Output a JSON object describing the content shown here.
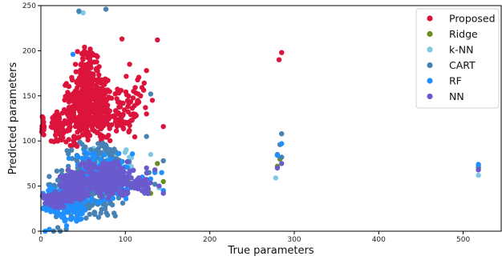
{
  "chart_data": {
    "type": "scatter",
    "xlabel": "True parameters",
    "ylabel": "Predicted parameters",
    "xlim": [
      0,
      545
    ],
    "ylim": [
      0,
      250
    ],
    "xticks": [
      "0",
      "100",
      "200",
      "300",
      "400",
      "500"
    ],
    "yticks": [
      "0",
      "50",
      "100",
      "150",
      "200",
      "250"
    ],
    "grid": false,
    "legend_position": "top-right",
    "series": [
      {
        "name": "Proposed",
        "color": "#dc143c",
        "clusters": [
          {
            "x": [
              0,
              5
            ],
            "y": [
              100,
              130
            ],
            "n": 18
          },
          {
            "x": [
              10,
              30
            ],
            "y": [
              95,
              135
            ],
            "n": 60
          },
          {
            "x": [
              25,
              55
            ],
            "y": [
              90,
              175
            ],
            "n": 140
          },
          {
            "x": [
              40,
              70
            ],
            "y": [
              100,
              210
            ],
            "n": 260
          },
          {
            "x": [
              55,
              85
            ],
            "y": [
              95,
              175
            ],
            "n": 150
          },
          {
            "x": [
              75,
              115
            ],
            "y": [
              95,
              160
            ],
            "n": 60
          },
          {
            "x": [
              90,
              130
            ],
            "y": [
              110,
              185
            ],
            "n": 25
          }
        ],
        "points": [
          [
            138,
            212
          ],
          [
            96,
            213
          ],
          [
            125,
            178
          ],
          [
            132,
            145
          ],
          [
            145,
            116
          ],
          [
            125,
            130
          ],
          [
            282,
            190
          ],
          [
            285,
            198
          ],
          [
            118,
            150
          ],
          [
            105,
            185
          ]
        ]
      },
      {
        "name": "Ridge",
        "color": "#6b8e23",
        "clusters": [
          {
            "x": [
              5,
              25
            ],
            "y": [
              22,
              42
            ],
            "n": 15
          },
          {
            "x": [
              20,
              110
            ],
            "y": [
              35,
              70
            ],
            "n": 60
          }
        ],
        "points": [
          [
            130,
            42
          ],
          [
            138,
            75
          ],
          [
            145,
            55
          ],
          [
            283,
            80
          ],
          [
            518,
            70
          ],
          [
            280,
            72
          ]
        ]
      },
      {
        "name": "k-NN",
        "color": "#7ec8e3",
        "clusters": [
          {
            "x": [
              10,
              60
            ],
            "y": [
              20,
              55
            ],
            "n": 40
          },
          {
            "x": [
              40,
              120
            ],
            "y": [
              45,
              95
            ],
            "n": 60
          }
        ],
        "points": [
          [
            45,
            243
          ],
          [
            50,
            242
          ],
          [
            130,
            85
          ],
          [
            140,
            48
          ],
          [
            278,
            59
          ],
          [
            518,
            62
          ],
          [
            125,
            65
          ]
        ]
      },
      {
        "name": "CART",
        "color": "#4682b4",
        "clusters": [
          {
            "x": [
              0,
              100
            ],
            "y": [
              10,
              75
            ],
            "n": 240
          },
          {
            "x": [
              30,
              110
            ],
            "y": [
              60,
              100
            ],
            "n": 90
          }
        ],
        "points": [
          [
            77,
            246
          ],
          [
            45,
            244
          ],
          [
            130,
            152
          ],
          [
            125,
            105
          ],
          [
            145,
            78
          ],
          [
            285,
            108
          ],
          [
            283,
            96
          ],
          [
            285,
            82
          ],
          [
            518,
            72
          ],
          [
            280,
            85
          ],
          [
            15,
            0
          ],
          [
            20,
            4
          ],
          [
            30,
            2
          ],
          [
            23,
            0
          ],
          [
            123,
            42
          ],
          [
            128,
            65
          ],
          [
            135,
            52
          ]
        ]
      },
      {
        "name": "RF",
        "color": "#1e90ff",
        "clusters": [
          {
            "x": [
              0,
              60
            ],
            "y": [
              5,
              55
            ],
            "n": 120
          },
          {
            "x": [
              30,
              110
            ],
            "y": [
              25,
              95
            ],
            "n": 160
          }
        ],
        "points": [
          [
            38,
            196
          ],
          [
            143,
            65
          ],
          [
            135,
            65
          ],
          [
            130,
            58
          ],
          [
            285,
            97
          ],
          [
            280,
            84
          ],
          [
            518,
            74
          ],
          [
            5,
            0
          ],
          [
            10,
            2
          ],
          [
            120,
            60
          ],
          [
            145,
            45
          ]
        ]
      },
      {
        "name": "NN",
        "color": "#6a5acd",
        "clusters": [
          {
            "x": [
              0,
              30
            ],
            "y": [
              25,
              45
            ],
            "n": 60
          },
          {
            "x": [
              20,
              60
            ],
            "y": [
              30,
              70
            ],
            "n": 220
          },
          {
            "x": [
              45,
              110
            ],
            "y": [
              35,
              80
            ],
            "n": 260
          },
          {
            "x": [
              100,
              130
            ],
            "y": [
              40,
              65
            ],
            "n": 40
          }
        ],
        "points": [
          [
            125,
            70
          ],
          [
            135,
            68
          ],
          [
            145,
            42
          ],
          [
            280,
            70
          ],
          [
            285,
            75
          ],
          [
            518,
            68
          ],
          [
            140,
            50
          ],
          [
            2,
            40
          ]
        ]
      }
    ]
  }
}
